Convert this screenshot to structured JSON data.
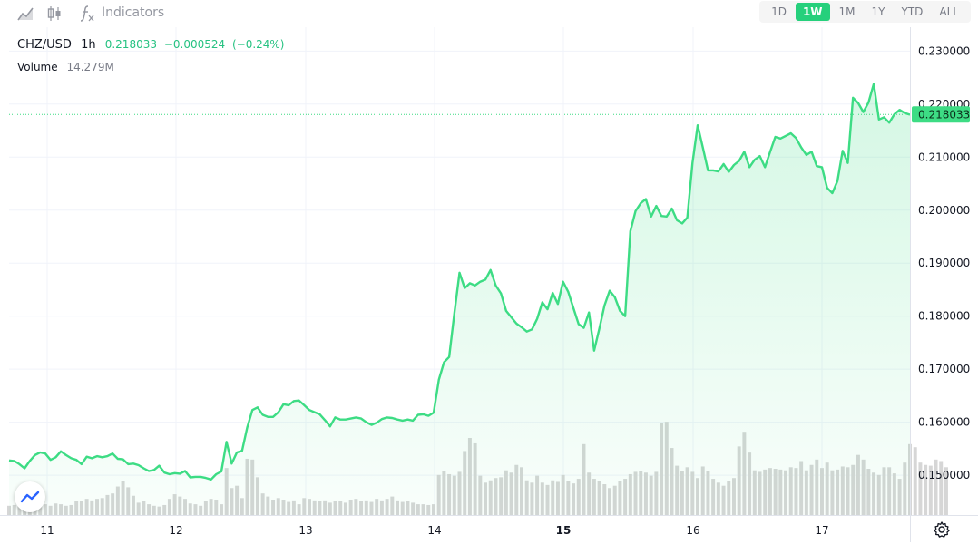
{
  "toolbar": {
    "icons": [
      "area-chart-icon",
      "candlestick-icon",
      "function-icon"
    ],
    "indicators_label": "Indicators",
    "ranges": [
      "1D",
      "1W",
      "1M",
      "1Y",
      "YTD",
      "ALL"
    ],
    "active_range": "1W"
  },
  "legend": {
    "symbol": "CHZ/USD",
    "timeframe": "1h",
    "price": "0.218033",
    "change": "−0.000524",
    "change_pct": "(−0.24%)",
    "volume_label": "Volume",
    "volume_value": "14.279M"
  },
  "price_label": "0.218033",
  "colors": {
    "line": "#3ddc84",
    "fill": "#e6f9ee",
    "volume_bar": "#d6d6d6",
    "grid": "#f0f3fa",
    "price_tag": "#3ddc84"
  },
  "chart_data": {
    "type": "area",
    "ylim": [
      0.1425,
      0.2345
    ],
    "ticks_y": [
      "0.230000",
      "0.220000",
      "0.210000",
      "0.200000",
      "0.190000",
      "0.180000",
      "0.170000",
      "0.160000",
      "0.150000"
    ],
    "ticks_y_values": [
      0.23,
      0.22,
      0.21,
      0.2,
      0.19,
      0.18,
      0.17,
      0.16,
      0.15
    ],
    "x_ticks": [
      "11",
      "12",
      "13",
      "14",
      "15",
      "16",
      "17"
    ],
    "x_ticks_bold": "15",
    "grid": true,
    "last_price": 0.218033,
    "price": [
      0.1528,
      0.1527,
      0.1521,
      0.1513,
      0.1527,
      0.1538,
      0.1543,
      0.1541,
      0.1529,
      0.1534,
      0.1545,
      0.1538,
      0.1532,
      0.1529,
      0.1521,
      0.1535,
      0.1532,
      0.1536,
      0.1534,
      0.1536,
      0.1541,
      0.1531,
      0.153,
      0.1521,
      0.1522,
      0.1519,
      0.1513,
      0.1508,
      0.151,
      0.1518,
      0.1505,
      0.1502,
      0.1504,
      0.1503,
      0.1508,
      0.1496,
      0.1497,
      0.1497,
      0.1495,
      0.1492,
      0.1502,
      0.1507,
      0.1563,
      0.1522,
      0.1543,
      0.1546,
      0.159,
      0.1623,
      0.1628,
      0.1614,
      0.161,
      0.161,
      0.1619,
      0.1634,
      0.1632,
      0.164,
      0.1641,
      0.1632,
      0.1623,
      0.1619,
      0.1615,
      0.1604,
      0.1592,
      0.1609,
      0.1605,
      0.1605,
      0.1607,
      0.1609,
      0.1607,
      0.16,
      0.1595,
      0.1599,
      0.1606,
      0.1609,
      0.1608,
      0.1605,
      0.1603,
      0.1605,
      0.1603,
      0.1614,
      0.1615,
      0.1612,
      0.1618,
      0.168,
      0.1713,
      0.1723,
      0.1805,
      0.1882,
      0.1853,
      0.1862,
      0.1858,
      0.1865,
      0.1869,
      0.1887,
      0.1858,
      0.1843,
      0.181,
      0.1798,
      0.1786,
      0.1779,
      0.1771,
      0.1775,
      0.1795,
      0.1826,
      0.1813,
      0.1844,
      0.1823,
      0.1865,
      0.1846,
      0.1815,
      0.1785,
      0.1778,
      0.1807,
      0.1735,
      0.1776,
      0.182,
      0.1848,
      0.1836,
      0.181,
      0.18,
      0.196,
      0.1998,
      0.2013,
      0.2021,
      0.1988,
      0.2008,
      0.1989,
      0.1988,
      0.2003,
      0.1981,
      0.1975,
      0.1986,
      0.2089,
      0.216,
      0.2118,
      0.2075,
      0.2075,
      0.2073,
      0.2087,
      0.2072,
      0.2085,
      0.2093,
      0.211,
      0.2081,
      0.2095,
      0.2102,
      0.2081,
      0.211,
      0.2138,
      0.2135,
      0.214,
      0.2145,
      0.2136,
      0.2118,
      0.2104,
      0.211,
      0.2083,
      0.2081,
      0.2042,
      0.2032,
      0.2055,
      0.2112,
      0.2089,
      0.2212,
      0.2202,
      0.2185,
      0.2203,
      0.2238,
      0.2171,
      0.2175,
      0.2165,
      0.2181,
      0.2189,
      0.2183,
      0.218
    ],
    "volume": [
      0.12,
      0.13,
      0.11,
      0.14,
      0.16,
      0.18,
      0.14,
      0.14,
      0.12,
      0.15,
      0.14,
      0.12,
      0.13,
      0.18,
      0.18,
      0.21,
      0.19,
      0.21,
      0.22,
      0.26,
      0.28,
      0.37,
      0.44,
      0.36,
      0.25,
      0.16,
      0.18,
      0.14,
      0.12,
      0.11,
      0.13,
      0.21,
      0.27,
      0.24,
      0.21,
      0.15,
      0.14,
      0.12,
      0.18,
      0.21,
      0.2,
      0.14,
      0.61,
      0.35,
      0.38,
      0.22,
      0.73,
      0.72,
      0.49,
      0.28,
      0.24,
      0.2,
      0.22,
      0.2,
      0.17,
      0.19,
      0.14,
      0.22,
      0.21,
      0.19,
      0.18,
      0.19,
      0.16,
      0.18,
      0.18,
      0.16,
      0.2,
      0.21,
      0.18,
      0.19,
      0.17,
      0.21,
      0.19,
      0.21,
      0.24,
      0.19,
      0.17,
      0.18,
      0.16,
      0.14,
      0.14,
      0.13,
      0.14,
      0.52,
      0.57,
      0.53,
      0.51,
      0.56,
      0.83,
      1.0,
      0.93,
      0.51,
      0.42,
      0.45,
      0.48,
      0.49,
      0.58,
      0.55,
      0.65,
      0.62,
      0.45,
      0.42,
      0.51,
      0.42,
      0.39,
      0.45,
      0.43,
      0.52,
      0.44,
      0.41,
      0.47,
      0.92,
      0.55,
      0.47,
      0.44,
      0.4,
      0.35,
      0.38,
      0.44,
      0.47,
      0.53,
      0.56,
      0.57,
      0.55,
      0.51,
      0.56,
      1.2,
      1.21,
      0.87,
      0.64,
      0.57,
      0.62,
      0.56,
      0.48,
      0.63,
      0.57,
      0.47,
      0.42,
      0.38,
      0.44,
      0.48,
      0.89,
      1.08,
      0.81,
      0.58,
      0.56,
      0.59,
      0.61,
      0.6,
      0.59,
      0.58,
      0.62,
      0.61,
      0.7,
      0.58,
      0.65,
      0.72,
      0.61,
      0.68,
      0.58,
      0.59,
      0.63,
      0.62,
      0.65,
      0.78,
      0.72,
      0.6,
      0.55,
      0.52,
      0.62,
      0.62,
      0.54,
      0.47,
      0.68,
      0.92,
      0.88,
      0.68,
      0.65,
      0.64,
      0.72,
      0.7,
      0.62
    ]
  }
}
